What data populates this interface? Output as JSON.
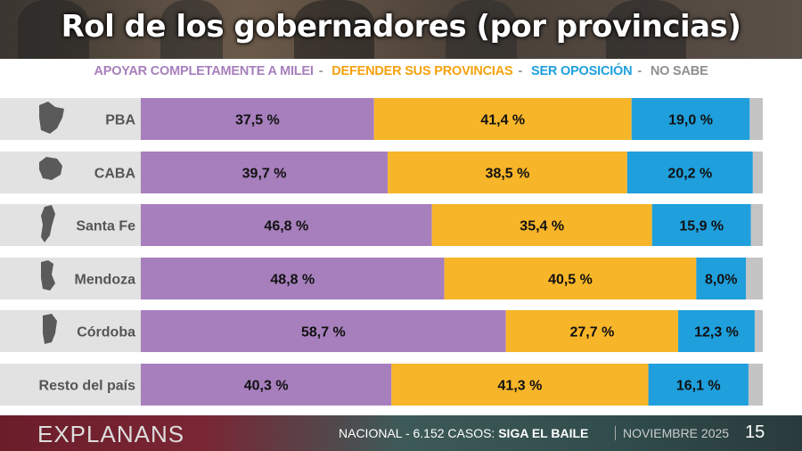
{
  "header": {
    "title": "Rol de los gobernadores (por provincias)"
  },
  "chart_data": {
    "type": "bar",
    "orientation": "horizontal",
    "stacked": true,
    "title": "Rol de los gobernadores (por provincias)",
    "categories": [
      "PBA",
      "CABA",
      "Santa Fe",
      "Mendoza",
      "Córdoba",
      "Resto del país"
    ],
    "series": [
      {
        "name": "APOYAR COMPLETAMENTE A MILEI",
        "color": "#a77fbd",
        "values": [
          37.5,
          39.7,
          46.8,
          48.8,
          58.7,
          40.3
        ],
        "labels": [
          "37,5 %",
          "39,7 %",
          "46,8 %",
          "48,8 %",
          "58,7 %",
          "40,3 %"
        ]
      },
      {
        "name": "DEFENDER SUS PROVINCIAS",
        "color": "#f7b529",
        "values": [
          41.4,
          38.5,
          35.4,
          40.5,
          27.7,
          41.3
        ],
        "labels": [
          "41,4 %",
          "38,5 %",
          "35,4 %",
          "40,5 %",
          "27,7 %",
          "41,3 %"
        ]
      },
      {
        "name": "SER OPOSICIÓN",
        "color": "#1f9fdc",
        "values": [
          19.0,
          20.2,
          15.9,
          8.0,
          12.3,
          16.1
        ],
        "labels": [
          "19,0 %",
          "20,2 %",
          "15,9 %",
          "8,0%",
          "12,3 %",
          "16,1 %"
        ]
      },
      {
        "name": "NO SABE",
        "color": "#c4c4c4",
        "values": [
          2.1,
          1.6,
          1.9,
          2.7,
          1.3,
          2.3
        ]
      }
    ],
    "xlim": [
      0,
      100
    ],
    "legend": "top"
  },
  "footer": {
    "brand": "EXPLANANS",
    "info": "NACIONAL - 6.152 CASOS: ",
    "info_bold": "SIGA EL BAILE",
    "date": "NOVIEMBRE 2025",
    "page": "15"
  }
}
